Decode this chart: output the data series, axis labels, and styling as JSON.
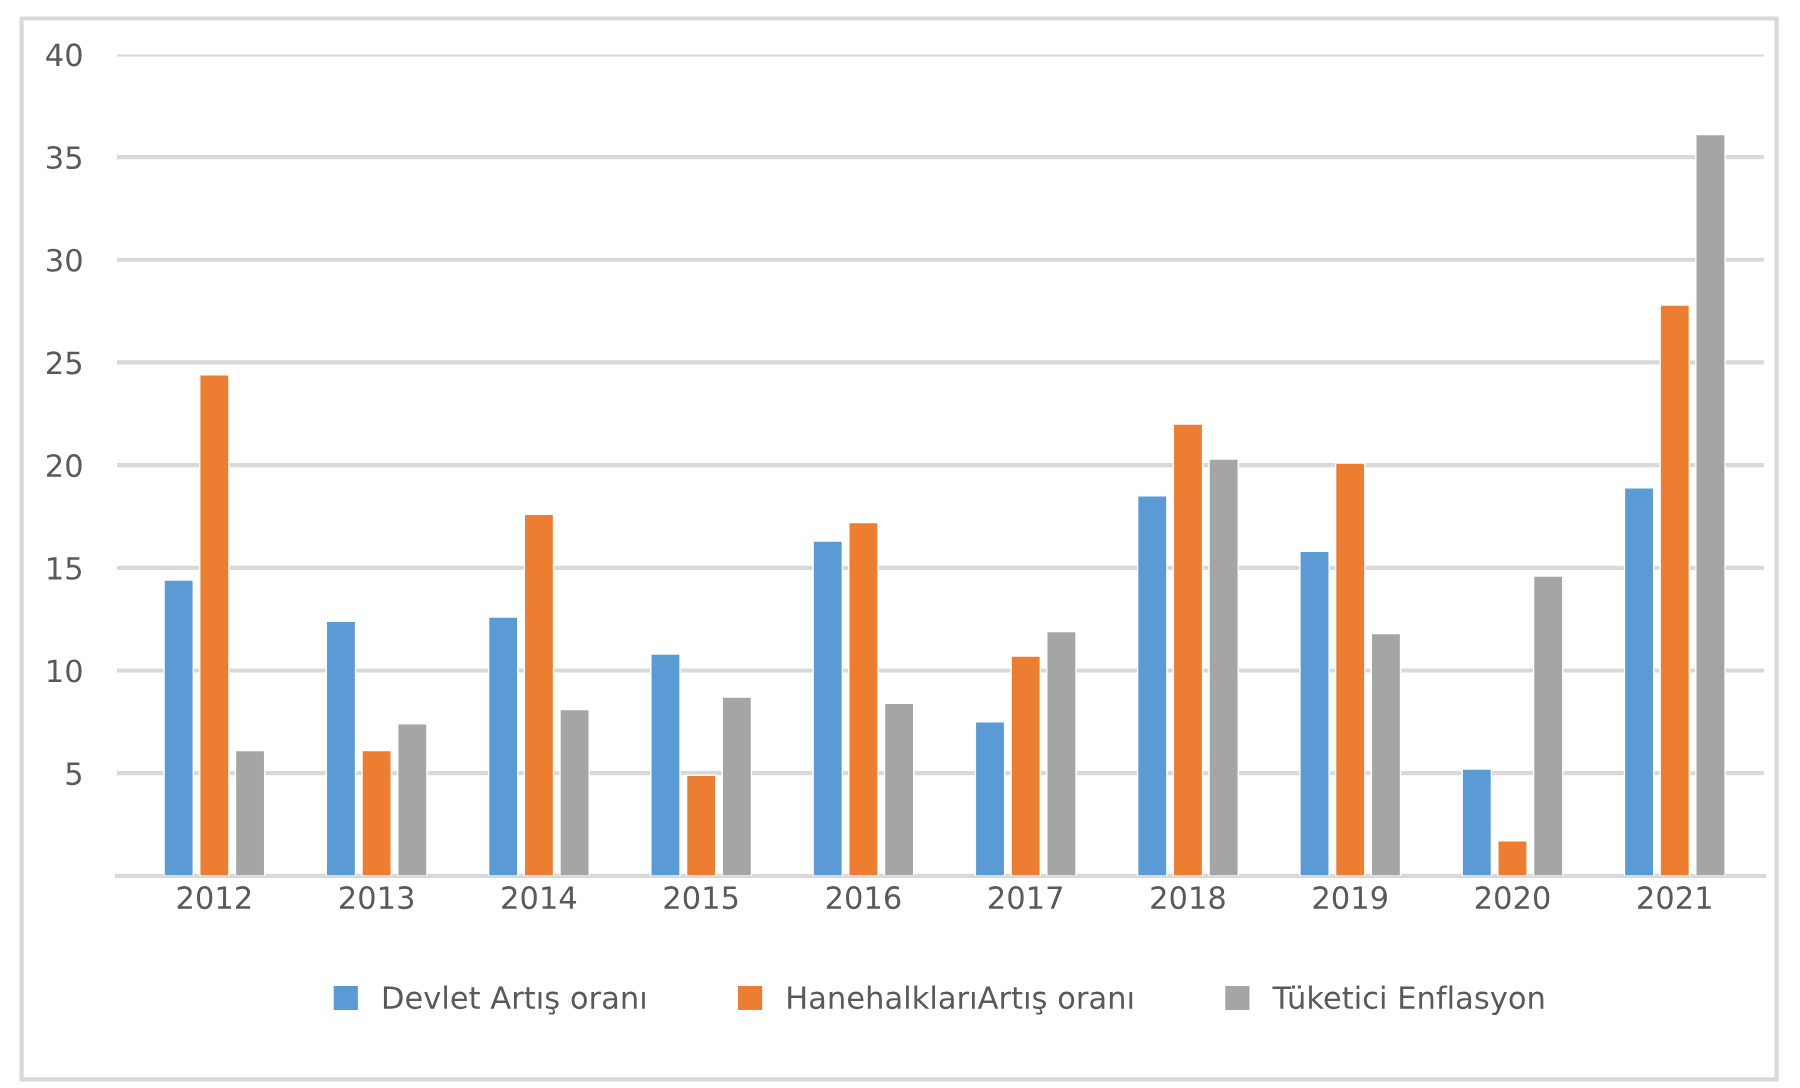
{
  "chart_data": {
    "type": "bar",
    "categories": [
      "2012",
      "2013",
      "2014",
      "2015",
      "2016",
      "2017",
      "2018",
      "2019",
      "2020",
      "2021"
    ],
    "series": [
      {
        "name": "Devlet Artış oranı",
        "color": "#5b9bd5",
        "values": [
          14.4,
          12.4,
          12.6,
          10.8,
          16.3,
          7.5,
          18.5,
          15.8,
          5.2,
          18.9
        ]
      },
      {
        "name": "HanehalklarıArtış oranı",
        "color": "#ed7d31",
        "values": [
          24.4,
          6.1,
          17.6,
          4.9,
          17.2,
          10.7,
          22.0,
          20.1,
          1.7,
          27.8
        ]
      },
      {
        "name": "Tüketici Enflasyon",
        "color": "#a5a5a5",
        "values": [
          6.1,
          7.4,
          8.1,
          8.7,
          8.4,
          11.9,
          20.3,
          11.8,
          14.6,
          36.1
        ]
      }
    ],
    "ylim": [
      0,
      40
    ],
    "yticks": [
      5,
      10,
      15,
      20,
      25,
      30,
      35,
      40
    ],
    "grid": "y",
    "legend": "bottom"
  }
}
